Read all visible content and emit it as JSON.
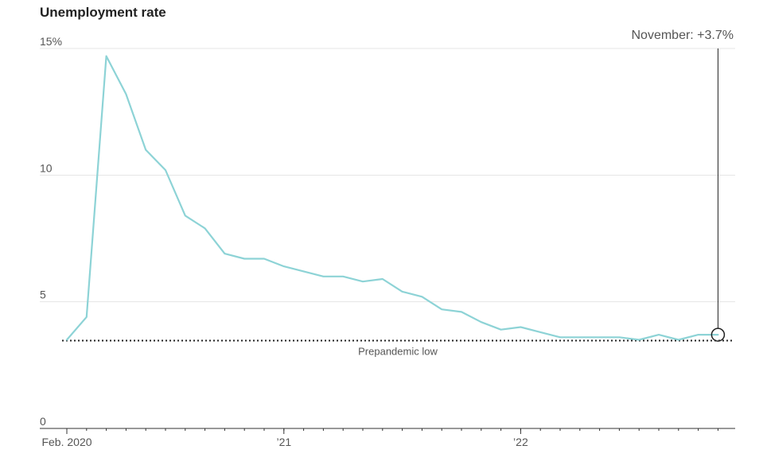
{
  "chart_data": {
    "type": "line",
    "title": "Unemployment rate",
    "xlabel": "",
    "ylabel": "",
    "ylim": [
      0,
      15
    ],
    "yticks": [
      {
        "value": 15,
        "label": "15%"
      },
      {
        "value": 10,
        "label": "10"
      },
      {
        "value": 5,
        "label": "5"
      },
      {
        "value": 0,
        "label": "0"
      }
    ],
    "xticks": [
      {
        "index": 0,
        "label": "Feb. 2020"
      },
      {
        "index": 11,
        "label": "’21"
      },
      {
        "index": 23,
        "label": "’22"
      }
    ],
    "x": [
      "Feb. 2020",
      "Mar. 2020",
      "Apr. 2020",
      "May 2020",
      "Jun. 2020",
      "Jul. 2020",
      "Aug. 2020",
      "Sep. 2020",
      "Oct. 2020",
      "Nov. 2020",
      "Dec. 2020",
      "Jan. 2021",
      "Feb. 2021",
      "Mar. 2021",
      "Apr. 2021",
      "May 2021",
      "Jun. 2021",
      "Jul. 2021",
      "Aug. 2021",
      "Sep. 2021",
      "Oct. 2021",
      "Nov. 2021",
      "Dec. 2021",
      "Jan. 2022",
      "Feb. 2022",
      "Mar. 2022",
      "Apr. 2022",
      "May 2022",
      "Jun. 2022",
      "Jul. 2022",
      "Aug. 2022",
      "Sep. 2022",
      "Oct. 2022",
      "Nov. 2022"
    ],
    "series": [
      {
        "values": [
          3.5,
          4.4,
          14.7,
          13.2,
          11.0,
          10.2,
          8.4,
          7.9,
          6.9,
          6.7,
          6.7,
          6.4,
          6.2,
          6.0,
          6.0,
          5.8,
          5.9,
          5.4,
          5.2,
          4.7,
          4.6,
          4.2,
          3.9,
          4.0,
          3.8,
          3.6,
          3.6,
          3.6,
          3.6,
          3.5,
          3.7,
          3.5,
          3.7,
          3.7
        ],
        "color": "#8dd3d6"
      }
    ],
    "reference_line": {
      "value": 3.5,
      "label": "Prepandemic low"
    },
    "annotation": {
      "label": "November: +3.7%",
      "index": 33,
      "value": 3.7
    },
    "grid": true,
    "colors": {
      "line": "#8dd3d6",
      "grid": "#e4e4e4",
      "axis": "#333333",
      "text": "#555555",
      "title": "#222222",
      "reference": "#222222"
    }
  }
}
